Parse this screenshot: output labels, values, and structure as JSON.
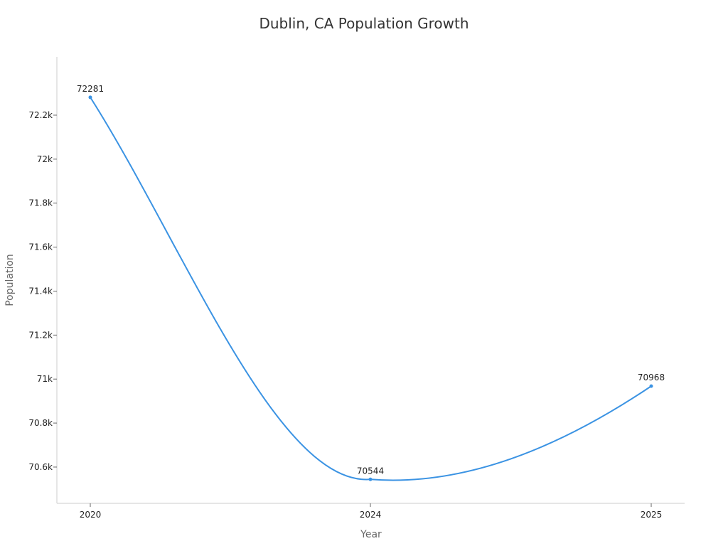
{
  "chart_data": {
    "type": "line",
    "title": "Dublin, CA Population Growth",
    "xlabel": "Year",
    "ylabel": "Population",
    "categories": [
      "2020",
      "2024",
      "2025"
    ],
    "series": [
      {
        "name": "Population",
        "values": [
          72281,
          70544,
          70968
        ],
        "color": "#3b93e3"
      }
    ],
    "ylim": [
      70435,
      72465
    ],
    "yticks": [
      70600,
      70800,
      71000,
      71200,
      71400,
      71600,
      71800,
      72000,
      72200
    ],
    "ytick_labels": [
      "70.6k",
      "70.8k",
      "71k",
      "71.2k",
      "71.4k",
      "71.6k",
      "71.8k",
      "72k",
      "72.2k"
    ],
    "grid": false,
    "curve": "smooth"
  }
}
